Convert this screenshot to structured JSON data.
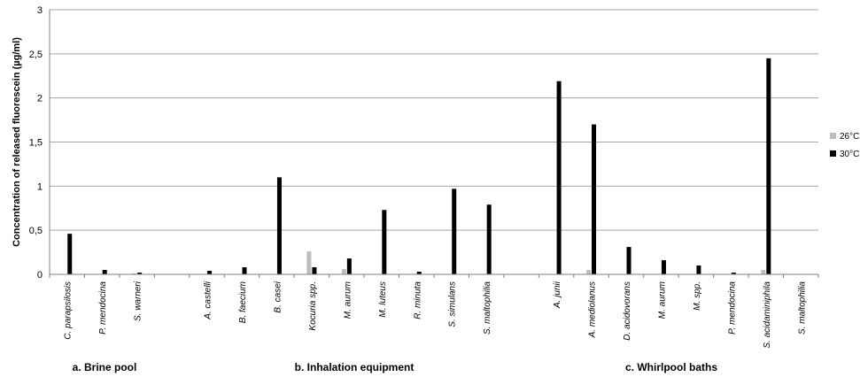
{
  "chart_data": {
    "type": "bar",
    "ylabel": "Concentration of released fluorescein (µg/ml)",
    "ylim": [
      0,
      3
    ],
    "yticks": [
      "0",
      "0,5",
      "1",
      "1,5",
      "2",
      "2,5",
      "3"
    ],
    "grid": "horizontal",
    "legend_position": "right",
    "colors": {
      "26°C": "#bdbdbd",
      "30°C": "#000000"
    },
    "categories": [
      "C. parapsilosis",
      "P. mendocina",
      "S. warneri",
      "",
      "A. castelli",
      "B. faecium",
      "B. casei",
      "Kocuria spp.",
      "M. aurum",
      "M. luteus",
      "R. minuta",
      "S. simulans",
      "S. maltophilia",
      "",
      "A. junii",
      "A. mediolanus",
      "D. acidovorans",
      "M. aurum",
      "M. spp.",
      "P. mendocina",
      "S. acidaminiphila",
      "S. maltophilia"
    ],
    "series": [
      {
        "name": "26°C",
        "values": [
          0,
          0,
          0.01,
          0,
          0,
          0,
          0,
          0.26,
          0.06,
          0,
          0,
          0,
          0,
          0,
          0,
          0.05,
          0,
          0,
          0,
          0,
          0.05,
          0
        ]
      },
      {
        "name": "30°C",
        "values": [
          0.46,
          0.05,
          0.02,
          0,
          0.04,
          0.08,
          1.1,
          0.08,
          0.18,
          0.73,
          0.03,
          0.97,
          0.79,
          0,
          2.19,
          1.7,
          0.31,
          0.16,
          0.1,
          0.02,
          2.45,
          0
        ]
      }
    ],
    "groups": [
      "a. Brine pool",
      "b. Inhalation equipment",
      "c.  Whirlpool baths"
    ]
  }
}
